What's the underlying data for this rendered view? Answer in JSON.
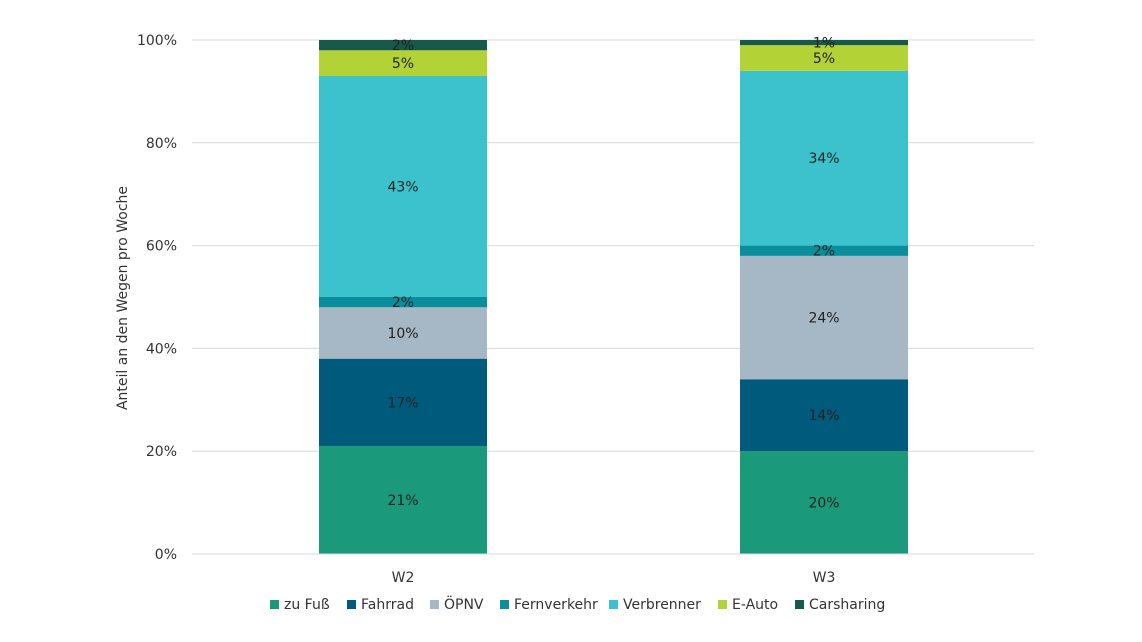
{
  "chart_data": {
    "type": "bar",
    "stacked": true,
    "categories": [
      "W2",
      "W3"
    ],
    "ylabel": "Anteil an den Wegen pro Woche",
    "ylim": [
      0,
      100
    ],
    "yticks": [
      "0%",
      "20%",
      "40%",
      "60%",
      "80%",
      "100%"
    ],
    "grid": true,
    "legend_position": "bottom",
    "series": [
      {
        "name": "zu Fuß",
        "color": "#1a9a7a",
        "values": [
          21,
          20
        ],
        "labels": [
          "21%",
          "20%"
        ]
      },
      {
        "name": "Fahrrad",
        "color": "#005a7c",
        "values": [
          17,
          14
        ],
        "labels": [
          "17%",
          "14%"
        ]
      },
      {
        "name": "ÖPNV",
        "color": "#a6b8c5",
        "values": [
          10,
          24
        ],
        "labels": [
          "10%",
          "24%"
        ]
      },
      {
        "name": "Fernverkehr",
        "color": "#0b8e9b",
        "values": [
          2,
          2
        ],
        "labels": [
          "2%",
          "2%"
        ]
      },
      {
        "name": "Verbrenner",
        "color": "#3bc2cc",
        "values": [
          43,
          34
        ],
        "labels": [
          "43%",
          "34%"
        ]
      },
      {
        "name": "E-Auto",
        "color": "#b2d236",
        "values": [
          5,
          5
        ],
        "labels": [
          "5%",
          "5%"
        ]
      },
      {
        "name": "Carsharing",
        "color": "#185a4a",
        "values": [
          2,
          1
        ],
        "labels": [
          "2%",
          "1%"
        ]
      }
    ]
  }
}
